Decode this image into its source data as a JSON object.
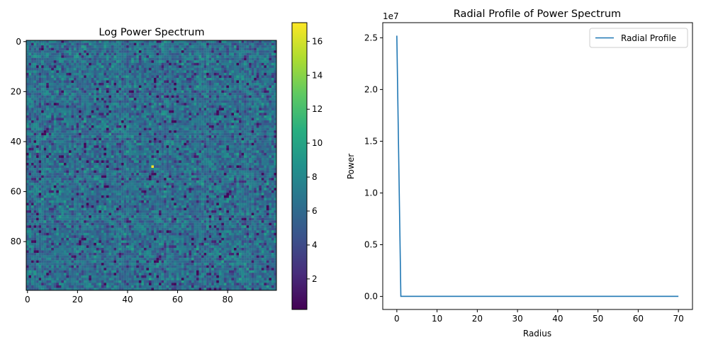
{
  "chart_data": [
    {
      "type": "heatmap",
      "title": "Log Power Spectrum",
      "xlabel": "",
      "ylabel": "",
      "grid_size": [
        100,
        100
      ],
      "x_ticks": [
        0,
        20,
        40,
        60,
        80
      ],
      "y_ticks": [
        0,
        20,
        40,
        60,
        80
      ],
      "y_inverted": true,
      "peak": {
        "x": 50,
        "y": 50,
        "value": 17.0
      },
      "background_value_range": [
        0.3,
        10.5
      ],
      "colormap": "viridis",
      "colorbar": {
        "range": [
          0.2,
          17.1
        ],
        "ticks": [
          2,
          4,
          6,
          8,
          10,
          12,
          14,
          16
        ]
      }
    },
    {
      "type": "line",
      "title": "Radial Profile of Power Spectrum",
      "xlabel": "Radius",
      "ylabel": "Power",
      "y_offset_label": "1e7",
      "xlim": [
        -3.5,
        73.5
      ],
      "ylim": [
        -1260000,
        26460000
      ],
      "x_ticks": [
        0,
        10,
        20,
        30,
        40,
        50,
        60,
        70
      ],
      "y_ticks": [
        0,
        5000000,
        10000000,
        15000000,
        20000000,
        25000000
      ],
      "y_tick_labels": [
        "0.0",
        "0.5",
        "1.0",
        "1.5",
        "2.0",
        "2.5"
      ],
      "legend": "top-right",
      "grid": false,
      "series": [
        {
          "name": "Radial Profile",
          "color": "#1f77b4",
          "x": [
            0,
            1,
            2,
            3,
            4,
            5,
            6,
            7,
            8,
            9,
            10,
            11,
            12,
            13,
            14,
            15,
            16,
            17,
            18,
            19,
            20,
            21,
            22,
            23,
            24,
            25,
            26,
            27,
            28,
            29,
            30,
            31,
            32,
            33,
            34,
            35,
            36,
            37,
            38,
            39,
            40,
            41,
            42,
            43,
            44,
            45,
            46,
            47,
            48,
            49,
            50,
            51,
            52,
            53,
            54,
            55,
            56,
            57,
            58,
            59,
            60,
            61,
            62,
            63,
            64,
            65,
            66,
            67,
            68,
            69,
            70
          ],
          "y": [
            25200000,
            9000,
            9000,
            9000,
            9000,
            9000,
            9000,
            9000,
            9000,
            9000,
            9000,
            9000,
            9000,
            9000,
            9000,
            9000,
            9000,
            9000,
            9000,
            9000,
            9000,
            9000,
            9000,
            9000,
            9000,
            9000,
            9000,
            9000,
            9000,
            9000,
            9000,
            9000,
            9000,
            9000,
            9000,
            9000,
            9000,
            9000,
            9000,
            9000,
            9000,
            9000,
            9000,
            9000,
            9000,
            9000,
            9000,
            9000,
            9000,
            9000,
            9000,
            9000,
            9000,
            9000,
            9000,
            9000,
            9000,
            9000,
            9000,
            9000,
            9000,
            9000,
            9000,
            9000,
            9000,
            9000,
            9000,
            9000,
            9000,
            9000,
            9000
          ]
        }
      ]
    }
  ]
}
